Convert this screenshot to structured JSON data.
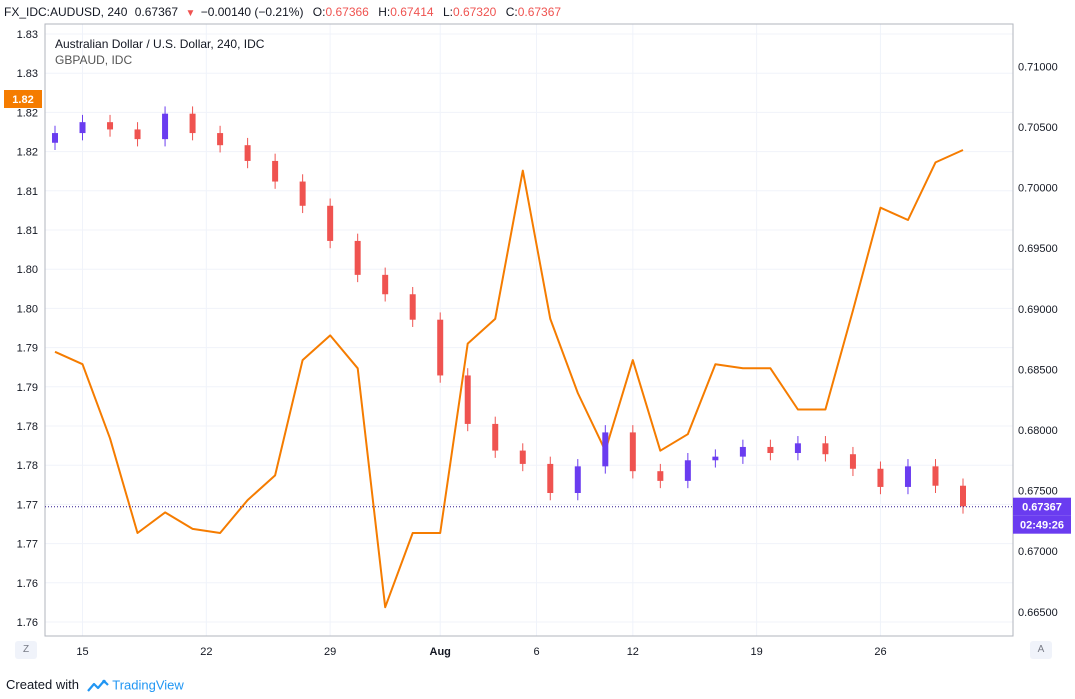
{
  "header": {
    "symbol": "FX_IDC:AUDUSD, 240",
    "last": "0.67367",
    "change": "−0.00140 (−0.21%)",
    "open_label": "O:",
    "open": "0.67366",
    "high_label": "H:",
    "high": "0.67414",
    "low_label": "L:",
    "low": "0.67320",
    "close_label": "C:",
    "close": "0.67367"
  },
  "legend": {
    "main": "Australian Dollar / U.S. Dollar, 240, IDC",
    "overlay": "GBPAUD, IDC"
  },
  "left_axis": {
    "ticks": [
      "1.83",
      "1.83",
      "1.82",
      "1.82",
      "1.81",
      "1.81",
      "1.80",
      "1.80",
      "1.79",
      "1.79",
      "1.78",
      "1.78",
      "1.77",
      "1.77",
      "1.76",
      "1.76"
    ],
    "current_label": "1.82"
  },
  "right_axis": {
    "ticks": [
      "0.71000",
      "0.70500",
      "0.70000",
      "0.69500",
      "0.69000",
      "0.68500",
      "0.68000",
      "0.67500",
      "0.67000",
      "0.66500"
    ],
    "price_label": "0.67367",
    "countdown_label": "02:49:26"
  },
  "time_axis": [
    "15",
    "22",
    "29",
    "Aug",
    "6",
    "12",
    "19",
    "26"
  ],
  "corner_buttons": {
    "left": "Z",
    "right": "A"
  },
  "footer": {
    "created_with": "Created with",
    "brand": "TradingView"
  },
  "colors": {
    "up": "#6a3cf0",
    "down": "#ef5350",
    "overlay": "#f57c00",
    "price_line": "#311b92",
    "grid": "#f0f3fa"
  },
  "chart_data": {
    "type": "line",
    "title": "Australian Dollar / U.S. Dollar, 240, IDC",
    "xlabel": "",
    "ylabel": "",
    "x": [
      "Jul 14",
      "Jul 15",
      "Jul 16",
      "Jul 17",
      "Jul 20",
      "Jul 21",
      "Jul 22",
      "Jul 23",
      "Jul 24",
      "Jul 27",
      "Jul 28",
      "Jul 29",
      "Jul 30",
      "Jul 31",
      "Aug 3",
      "Aug 4",
      "Aug 5",
      "Aug 6",
      "Aug 7",
      "Aug 10",
      "Aug 11",
      "Aug 12",
      "Aug 13",
      "Aug 14",
      "Aug 17",
      "Aug 18",
      "Aug 19",
      "Aug 20",
      "Aug 21",
      "Aug 24",
      "Aug 25",
      "Aug 26",
      "Aug 27",
      "Aug 28"
    ],
    "series": [
      {
        "name": "AUDUSD",
        "axis": "right",
        "ylim": [
          0.663,
          0.7135
        ],
        "values": [
          0.7045,
          0.7054,
          0.7048,
          0.704,
          0.7061,
          0.7045,
          0.7035,
          0.7022,
          0.7005,
          0.6985,
          0.6956,
          0.6928,
          0.6912,
          0.6891,
          0.6845,
          0.6805,
          0.6783,
          0.6772,
          0.6748,
          0.677,
          0.6798,
          0.6766,
          0.6758,
          0.6775,
          0.6778,
          0.6786,
          0.6781,
          0.6789,
          0.678,
          0.6768,
          0.6753,
          0.677,
          0.6754,
          0.6737
        ]
      },
      {
        "name": "GBPAUD",
        "axis": "left",
        "ylim": [
          1.7595,
          1.8338
        ],
        "values": [
          1.794,
          1.7925,
          1.7835,
          1.772,
          1.7745,
          1.7725,
          1.772,
          1.776,
          1.779,
          1.793,
          1.796,
          1.792,
          1.763,
          1.772,
          1.772,
          1.795,
          1.798,
          1.816,
          1.798,
          1.789,
          1.782,
          1.793,
          1.782,
          1.784,
          1.7925,
          1.792,
          1.792,
          1.787,
          1.787,
          1.799,
          1.8115,
          1.81,
          1.817,
          1.8185
        ]
      }
    ]
  }
}
